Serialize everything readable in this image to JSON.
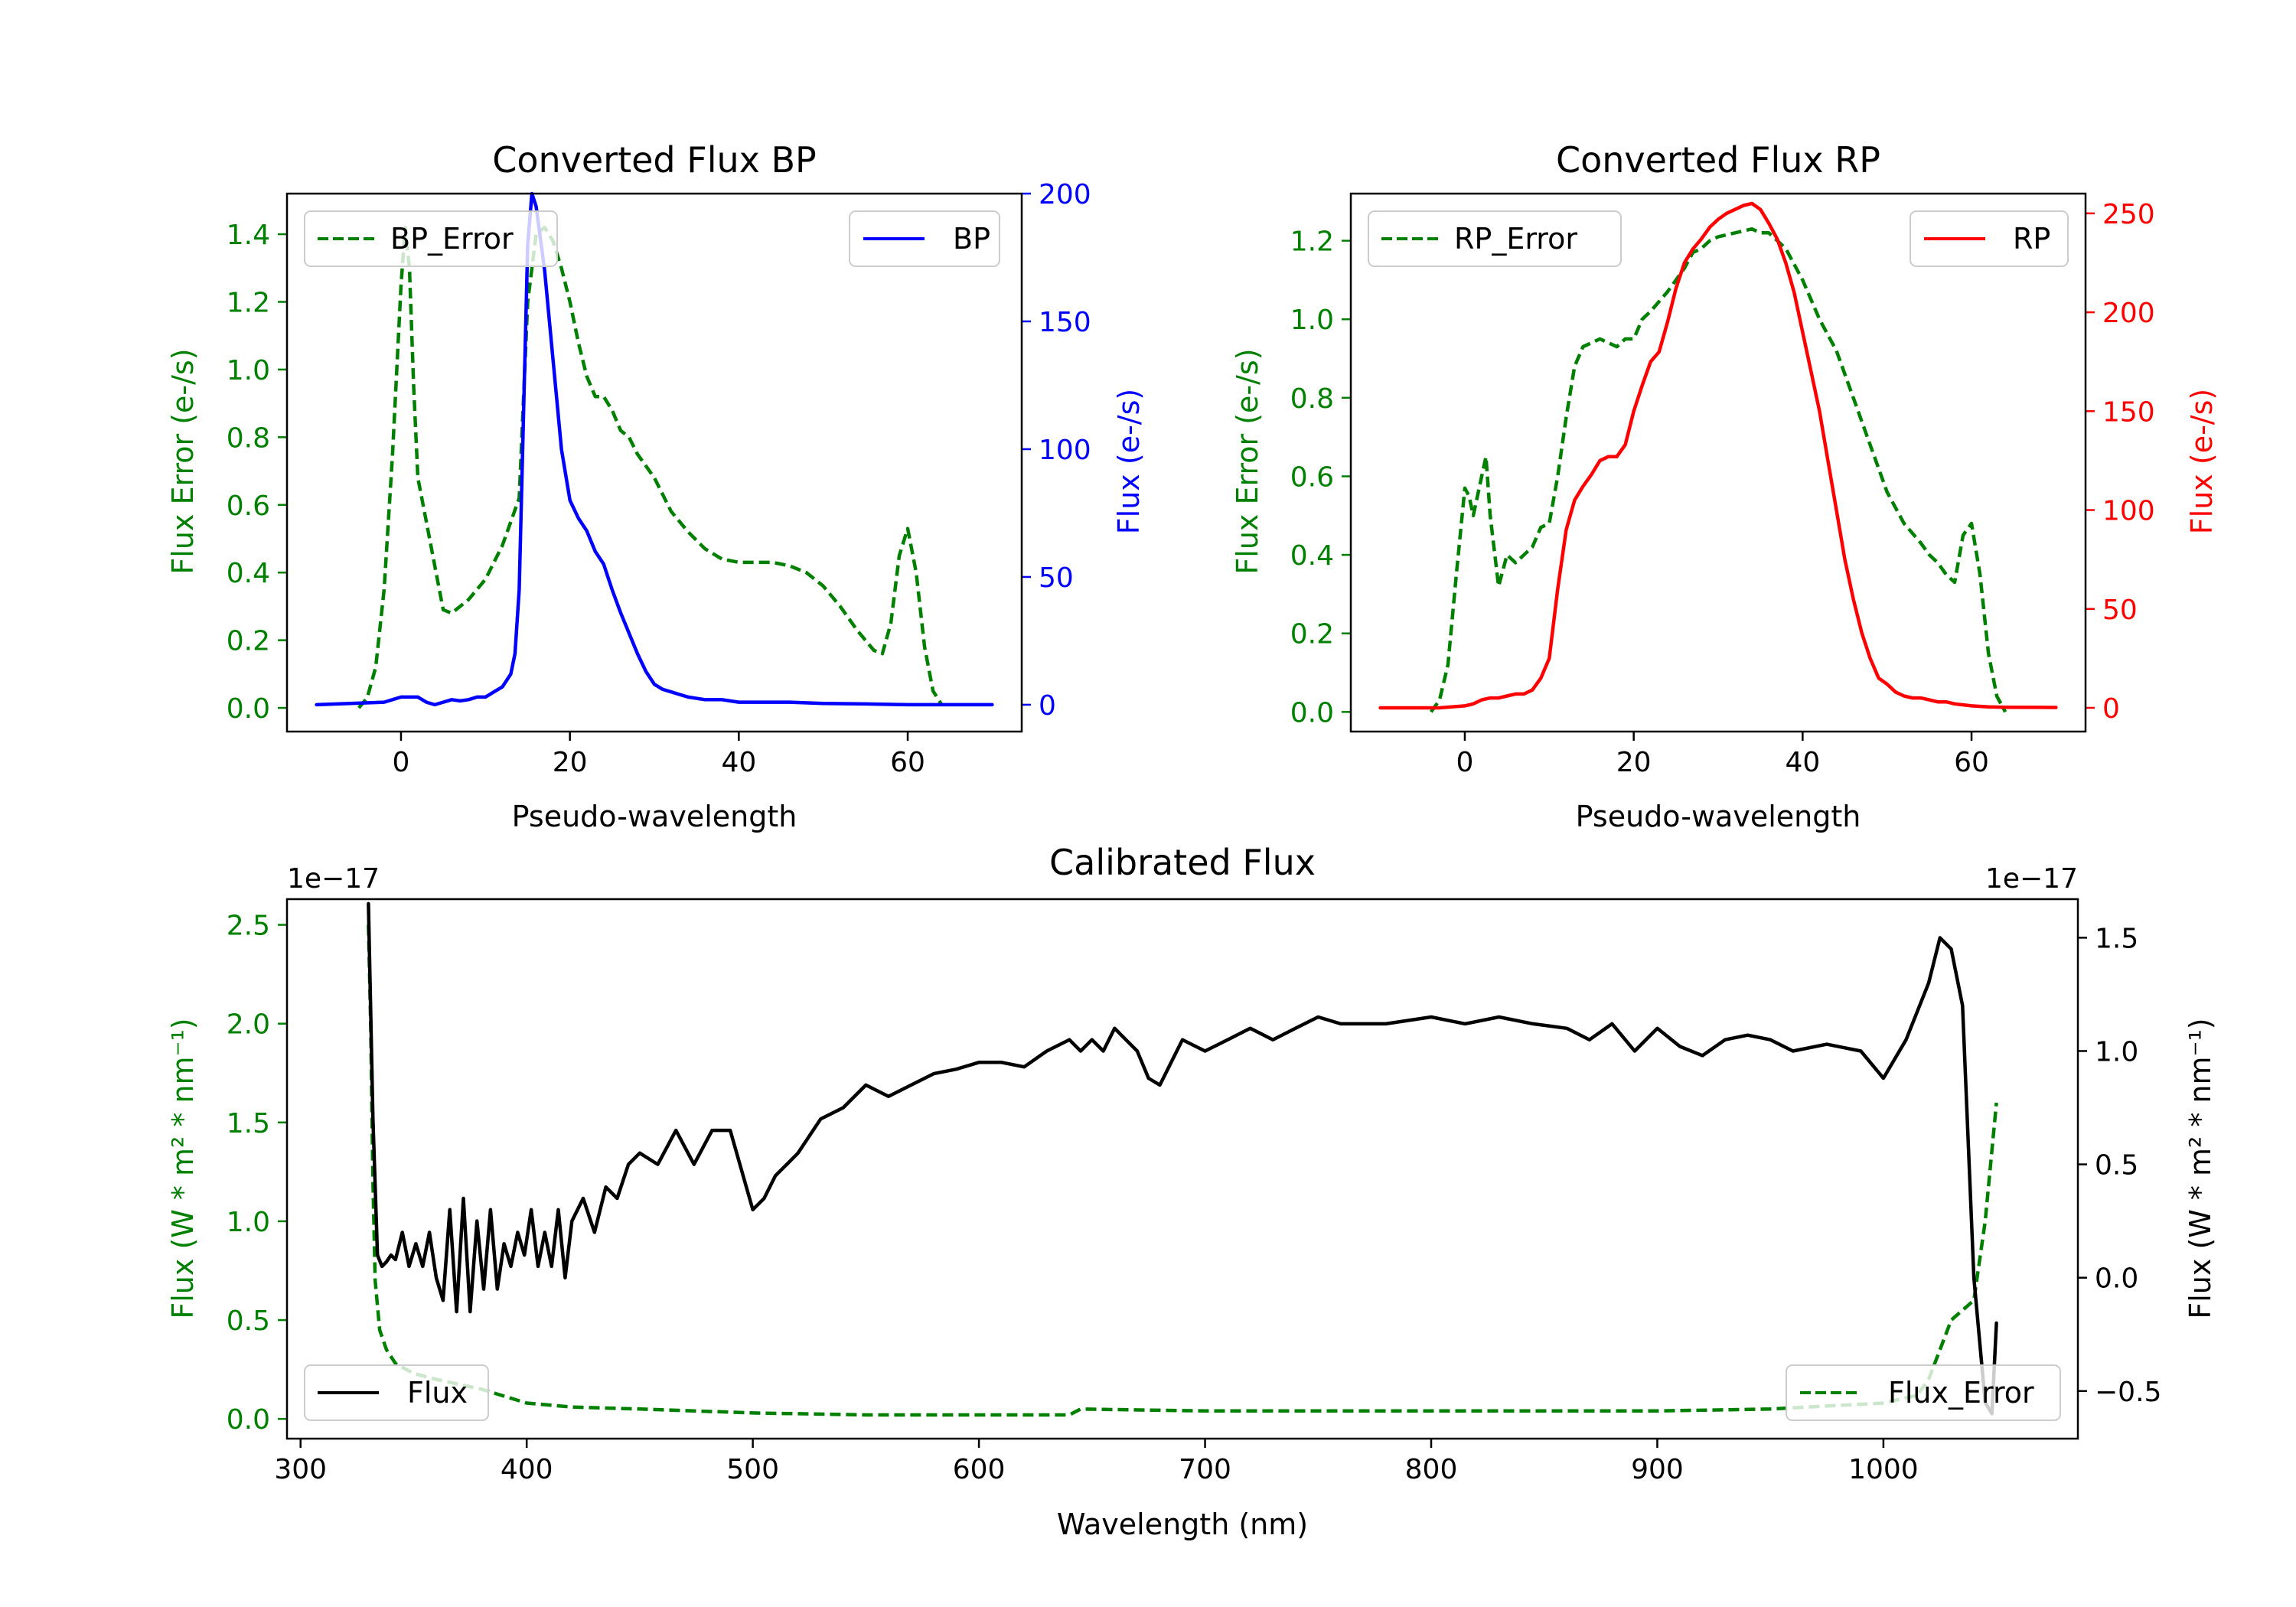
{
  "colors": {
    "error": "#008000",
    "bp": "#0000ff",
    "rp": "#ff0000",
    "flux": "#000000",
    "axis": "#000000"
  },
  "chart_data": [
    {
      "type": "line",
      "title": "Converted Flux BP",
      "xlabel": "Pseudo-wavelength",
      "ylabel_left": "Flux Error (e-/s)",
      "ylabel_right": "Flux (e-/s)",
      "xlim": [
        -13.5,
        73.5
      ],
      "ylim_left": [
        -0.07,
        1.52
      ],
      "ylim_right": [
        -10.5,
        200.0
      ],
      "xticks": [
        0,
        20,
        40,
        60
      ],
      "yticks_left": [
        "0.0",
        "0.2",
        "0.4",
        "0.6",
        "0.8",
        "1.0",
        "1.2",
        "1.4"
      ],
      "yticks_right": [
        "0",
        "50",
        "100",
        "150",
        "200"
      ],
      "right_axis_color": "bp",
      "series": [
        {
          "name": "BP_Error",
          "axis": "left",
          "style": "dashed",
          "color": "error",
          "legend": "top-left",
          "x": [
            -5,
            -4,
            -3,
            -2,
            -1,
            0,
            0.5,
            1,
            1.5,
            2,
            3,
            4,
            5,
            6,
            8,
            10,
            12,
            13,
            14,
            15,
            16,
            17,
            18,
            19,
            20,
            21,
            22,
            23,
            24,
            25,
            26,
            27,
            28,
            30,
            32,
            34,
            36,
            38,
            40,
            42,
            44,
            46,
            48,
            50,
            52,
            54,
            56,
            57,
            58,
            59,
            60,
            61,
            62,
            63,
            64
          ],
          "y": [
            0.0,
            0.03,
            0.12,
            0.35,
            0.75,
            1.25,
            1.42,
            1.3,
            0.95,
            0.68,
            0.55,
            0.42,
            0.29,
            0.28,
            0.32,
            0.38,
            0.48,
            0.55,
            0.62,
            1.2,
            1.4,
            1.42,
            1.38,
            1.3,
            1.2,
            1.08,
            0.98,
            0.92,
            0.92,
            0.88,
            0.82,
            0.8,
            0.75,
            0.68,
            0.58,
            0.52,
            0.47,
            0.44,
            0.43,
            0.43,
            0.43,
            0.42,
            0.4,
            0.36,
            0.3,
            0.23,
            0.17,
            0.16,
            0.25,
            0.45,
            0.53,
            0.4,
            0.18,
            0.05,
            0.01
          ]
        },
        {
          "name": "BP",
          "axis": "right",
          "style": "solid",
          "color": "bp",
          "legend": "top-right",
          "x": [
            -10,
            -2,
            0,
            1,
            2,
            3,
            4,
            5,
            6,
            7,
            8,
            9,
            10,
            11,
            12,
            13,
            13.5,
            14,
            15,
            15.5,
            16,
            17,
            18,
            19,
            20,
            21,
            22,
            23,
            24,
            25,
            26,
            27,
            28,
            29,
            30,
            31,
            32,
            33,
            34,
            36,
            38,
            40,
            42,
            44,
            46,
            50,
            55,
            60,
            70
          ],
          "y": [
            0,
            1,
            3,
            3,
            3,
            1,
            0,
            1,
            2,
            1.5,
            2,
            3,
            3,
            5,
            7,
            12,
            20,
            45,
            180,
            200,
            195,
            170,
            135,
            100,
            80,
            73,
            68,
            60,
            55,
            45,
            36,
            28,
            20,
            13,
            8,
            6,
            5,
            4,
            3,
            2,
            2,
            1,
            1,
            1,
            1,
            0.5,
            0.3,
            0,
            0
          ]
        }
      ]
    },
    {
      "type": "line",
      "title": "Converted Flux RP",
      "xlabel": "Pseudo-wavelength",
      "ylabel_left": "Flux Error (e-/s)",
      "ylabel_right": "Flux (e-/s)",
      "xlim": [
        -13.5,
        73.5
      ],
      "ylim_left": [
        -0.05,
        1.32
      ],
      "ylim_right": [
        -12.0,
        260.0
      ],
      "xticks": [
        0,
        20,
        40,
        60
      ],
      "yticks_left": [
        "0.0",
        "0.2",
        "0.4",
        "0.6",
        "0.8",
        "1.0",
        "1.2"
      ],
      "yticks_right": [
        "0",
        "50",
        "100",
        "150",
        "200",
        "250"
      ],
      "right_axis_color": "rp",
      "series": [
        {
          "name": "RP_Error",
          "axis": "left",
          "style": "dashed",
          "color": "error",
          "legend": "top-left",
          "x": [
            -4,
            -3,
            -2,
            -1,
            0,
            0.5,
            1,
            2,
            2.5,
            3,
            4,
            5,
            6,
            7,
            8,
            9,
            10,
            11,
            12,
            13,
            14,
            15,
            16,
            17,
            18,
            19,
            20,
            21,
            22,
            24,
            26,
            27,
            28,
            29,
            30,
            32,
            34,
            35,
            36,
            38,
            40,
            42,
            44,
            46,
            48,
            50,
            52,
            54,
            55,
            56,
            57,
            58,
            59,
            60,
            61,
            62,
            63,
            64
          ],
          "y": [
            0.0,
            0.03,
            0.12,
            0.35,
            0.57,
            0.55,
            0.5,
            0.6,
            0.65,
            0.5,
            0.32,
            0.4,
            0.38,
            0.4,
            0.42,
            0.47,
            0.48,
            0.6,
            0.75,
            0.88,
            0.93,
            0.94,
            0.95,
            0.94,
            0.93,
            0.95,
            0.95,
            1.0,
            1.02,
            1.07,
            1.13,
            1.17,
            1.18,
            1.2,
            1.21,
            1.22,
            1.23,
            1.22,
            1.22,
            1.18,
            1.1,
            1.0,
            0.92,
            0.8,
            0.68,
            0.56,
            0.48,
            0.43,
            0.4,
            0.38,
            0.35,
            0.33,
            0.45,
            0.48,
            0.35,
            0.15,
            0.04,
            0.0
          ]
        },
        {
          "name": "RP",
          "axis": "right",
          "style": "solid",
          "color": "rp",
          "legend": "top-right",
          "x": [
            -10,
            -3,
            0,
            1,
            2,
            3,
            4,
            5,
            6,
            7,
            8,
            9,
            10,
            11,
            12,
            13,
            14,
            15,
            16,
            17,
            18,
            19,
            20,
            21,
            22,
            23,
            24,
            25,
            26,
            27,
            28,
            29,
            30,
            31,
            32,
            33,
            34,
            35,
            36,
            37,
            38,
            39,
            40,
            41,
            42,
            43,
            44,
            45,
            46,
            47,
            48,
            49,
            50,
            51,
            52,
            53,
            54,
            55,
            56,
            57,
            58,
            60,
            62,
            64,
            70
          ],
          "y": [
            0,
            0,
            1,
            2,
            4,
            5,
            5,
            6,
            7,
            7,
            9,
            15,
            25,
            60,
            90,
            105,
            112,
            118,
            125,
            127,
            127,
            133,
            150,
            163,
            175,
            180,
            195,
            212,
            225,
            232,
            237,
            243,
            247,
            250,
            252,
            254,
            255,
            252,
            245,
            237,
            225,
            210,
            190,
            170,
            150,
            125,
            100,
            75,
            55,
            38,
            25,
            15,
            12,
            8,
            6,
            5,
            5,
            4,
            3,
            3,
            2,
            1,
            0.5,
            0.3,
            0.2
          ]
        }
      ]
    },
    {
      "type": "line",
      "title": "Calibrated Flux",
      "xlabel": "Wavelength (nm)",
      "ylabel_left": "Flux (W * m² * nm⁻¹)",
      "ylabel_right": "Flux (W * m² * nm⁻¹)",
      "offset_left": "1e−17",
      "offset_right": "1e−17",
      "xlim": [
        294,
        1086
      ],
      "ylim_left": [
        -0.1,
        2.63
      ],
      "ylim_right": [
        -0.71,
        1.67
      ],
      "xticks": [
        300,
        400,
        500,
        600,
        700,
        800,
        900,
        1000
      ],
      "yticks_left": [
        "0.0",
        "0.5",
        "1.0",
        "1.5",
        "2.0",
        "2.5"
      ],
      "yticks_right": [
        "−0.5",
        "0.0",
        "0.5",
        "1.0",
        "1.5"
      ],
      "right_axis_color": "flux",
      "series": [
        {
          "name": "Flux_Error",
          "axis": "left",
          "style": "dashed",
          "color": "error",
          "legend": "bottom-right",
          "x": [
            330,
            331,
            332,
            333,
            335,
            338,
            342,
            350,
            360,
            380,
            400,
            420,
            450,
            500,
            550,
            600,
            640,
            645,
            700,
            800,
            900,
            950,
            1000,
            1015,
            1020,
            1025,
            1030,
            1040,
            1045,
            1050
          ],
          "y": [
            2.5,
            2.0,
            1.2,
            0.7,
            0.45,
            0.35,
            0.28,
            0.23,
            0.2,
            0.15,
            0.08,
            0.06,
            0.05,
            0.03,
            0.02,
            0.02,
            0.02,
            0.05,
            0.04,
            0.04,
            0.04,
            0.05,
            0.08,
            0.12,
            0.2,
            0.35,
            0.5,
            0.6,
            1.0,
            1.6
          ]
        },
        {
          "name": "Flux",
          "axis": "right",
          "style": "solid",
          "color": "flux",
          "legend": "bottom-left",
          "x": [
            330,
            332,
            334,
            336,
            338,
            340,
            342,
            345,
            348,
            351,
            354,
            357,
            360,
            363,
            366,
            369,
            372,
            375,
            378,
            381,
            384,
            387,
            390,
            393,
            396,
            399,
            402,
            405,
            408,
            411,
            414,
            417,
            420,
            425,
            430,
            435,
            440,
            445,
            450,
            458,
            466,
            474,
            482,
            490,
            500,
            505,
            510,
            515,
            520,
            530,
            540,
            550,
            560,
            570,
            580,
            590,
            600,
            610,
            620,
            630,
            640,
            645,
            650,
            655,
            660,
            665,
            670,
            675,
            680,
            690,
            700,
            710,
            720,
            730,
            740,
            750,
            760,
            780,
            800,
            815,
            830,
            845,
            860,
            870,
            880,
            890,
            900,
            910,
            920,
            930,
            940,
            950,
            960,
            975,
            990,
            1000,
            1010,
            1020,
            1025,
            1030,
            1035,
            1040,
            1045,
            1048,
            1050
          ],
          "y": [
            1.65,
            0.7,
            0.1,
            0.05,
            0.07,
            0.1,
            0.08,
            0.2,
            0.05,
            0.15,
            0.05,
            0.2,
            0.0,
            -0.1,
            0.3,
            -0.15,
            0.35,
            -0.15,
            0.25,
            -0.05,
            0.3,
            -0.05,
            0.15,
            0.05,
            0.2,
            0.1,
            0.3,
            0.05,
            0.2,
            0.05,
            0.3,
            0.0,
            0.25,
            0.35,
            0.2,
            0.4,
            0.35,
            0.5,
            0.55,
            0.5,
            0.65,
            0.5,
            0.65,
            0.65,
            0.3,
            0.35,
            0.45,
            0.5,
            0.55,
            0.7,
            0.75,
            0.85,
            0.8,
            0.85,
            0.9,
            0.92,
            0.95,
            0.95,
            0.93,
            1.0,
            1.05,
            1.0,
            1.05,
            1.0,
            1.1,
            1.05,
            1.0,
            0.88,
            0.85,
            1.05,
            1.0,
            1.05,
            1.1,
            1.05,
            1.1,
            1.15,
            1.12,
            1.12,
            1.15,
            1.12,
            1.15,
            1.12,
            1.1,
            1.05,
            1.12,
            1.0,
            1.1,
            1.02,
            0.98,
            1.05,
            1.07,
            1.05,
            1.0,
            1.03,
            1.0,
            0.88,
            1.05,
            1.3,
            1.5,
            1.45,
            1.2,
            0.0,
            -0.55,
            -0.6,
            -0.2
          ]
        }
      ]
    }
  ]
}
